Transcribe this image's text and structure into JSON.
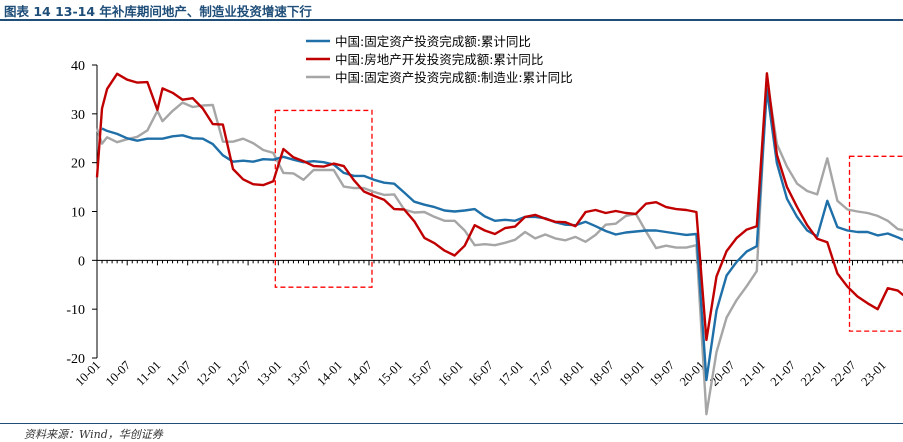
{
  "header": {
    "title": "图表 14   13-14 年补库期间地产、制造业投资增速下行"
  },
  "footer": {
    "source": "资料来源：Wind，华创证券"
  },
  "chart_data": {
    "type": "line",
    "title": "",
    "xlabel": "",
    "ylabel": "",
    "ylim": [
      -20,
      40
    ],
    "yticks": [
      -20,
      -10,
      0,
      10,
      20,
      30,
      40
    ],
    "x_tick_labels": [
      "10-01",
      "10-07",
      "11-01",
      "11-07",
      "12-01",
      "12-07",
      "13-01",
      "13-07",
      "14-01",
      "14-07",
      "15-01",
      "15-07",
      "16-01",
      "16-07",
      "17-01",
      "17-07",
      "18-01",
      "18-07",
      "19-01",
      "19-07",
      "20-01",
      "20-07",
      "21-01",
      "21-07",
      "22-01",
      "22-07",
      "23-01"
    ],
    "grid": false,
    "legend_position": "top-center",
    "highlight_boxes": [
      {
        "from": "13-01",
        "to": "14-07"
      },
      {
        "from": "22-07",
        "to": "23-07"
      }
    ],
    "series": [
      {
        "name": "中国:固定资产投资完成额:累计同比",
        "color": "#1f6fa8",
        "points": [
          [
            "10-02",
            27.0
          ],
          [
            "10-03",
            26.5
          ],
          [
            "10-05",
            25.9
          ],
          [
            "10-07",
            25.0
          ],
          [
            "10-09",
            24.5
          ],
          [
            "10-11",
            24.9
          ],
          [
            "11-02",
            24.9
          ],
          [
            "11-04",
            25.4
          ],
          [
            "11-06",
            25.6
          ],
          [
            "11-08",
            25.0
          ],
          [
            "11-10",
            24.9
          ],
          [
            "11-12",
            23.8
          ],
          [
            "12-02",
            21.5
          ],
          [
            "12-04",
            20.2
          ],
          [
            "12-06",
            20.4
          ],
          [
            "12-08",
            20.2
          ],
          [
            "12-10",
            20.7
          ],
          [
            "12-12",
            20.6
          ],
          [
            "13-02",
            21.2
          ],
          [
            "13-04",
            20.6
          ],
          [
            "13-06",
            20.1
          ],
          [
            "13-08",
            20.3
          ],
          [
            "13-10",
            20.1
          ],
          [
            "13-12",
            19.6
          ],
          [
            "14-02",
            17.9
          ],
          [
            "14-04",
            17.3
          ],
          [
            "14-06",
            17.3
          ],
          [
            "14-08",
            16.5
          ],
          [
            "14-10",
            15.9
          ],
          [
            "14-12",
            15.7
          ],
          [
            "15-02",
            13.9
          ],
          [
            "15-04",
            12.0
          ],
          [
            "15-06",
            11.4
          ],
          [
            "15-08",
            10.9
          ],
          [
            "15-10",
            10.2
          ],
          [
            "15-12",
            10.0
          ],
          [
            "16-02",
            10.2
          ],
          [
            "16-04",
            10.5
          ],
          [
            "16-06",
            9.0
          ],
          [
            "16-08",
            8.1
          ],
          [
            "16-10",
            8.3
          ],
          [
            "16-12",
            8.1
          ],
          [
            "17-02",
            8.9
          ],
          [
            "17-04",
            8.9
          ],
          [
            "17-06",
            8.6
          ],
          [
            "17-08",
            7.8
          ],
          [
            "17-10",
            7.3
          ],
          [
            "17-12",
            7.2
          ],
          [
            "18-02",
            7.9
          ],
          [
            "18-04",
            7.0
          ],
          [
            "18-06",
            6.0
          ],
          [
            "18-08",
            5.3
          ],
          [
            "18-10",
            5.7
          ],
          [
            "18-12",
            5.9
          ],
          [
            "19-02",
            6.1
          ],
          [
            "19-04",
            6.1
          ],
          [
            "19-06",
            5.8
          ],
          [
            "19-08",
            5.5
          ],
          [
            "19-10",
            5.2
          ],
          [
            "19-12",
            5.4
          ],
          [
            "20-02",
            -24.5
          ],
          [
            "20-04",
            -10.3
          ],
          [
            "20-06",
            -3.1
          ],
          [
            "20-08",
            -0.3
          ],
          [
            "20-10",
            1.8
          ],
          [
            "20-12",
            2.9
          ],
          [
            "21-02",
            35.0
          ],
          [
            "21-04",
            19.9
          ],
          [
            "21-06",
            12.6
          ],
          [
            "21-08",
            8.9
          ],
          [
            "21-10",
            6.1
          ],
          [
            "21-12",
            4.9
          ],
          [
            "22-02",
            12.2
          ],
          [
            "22-04",
            6.8
          ],
          [
            "22-06",
            6.1
          ],
          [
            "22-08",
            5.8
          ],
          [
            "22-10",
            5.8
          ],
          [
            "22-12",
            5.1
          ],
          [
            "23-02",
            5.5
          ],
          [
            "23-04",
            4.7
          ],
          [
            "23-06",
            3.8
          ],
          [
            "23-07",
            3.4
          ]
        ]
      },
      {
        "name": "中国:房地产开发投资完成额:累计同比",
        "color": "#c00000",
        "points": [
          [
            "10-01",
            17.0
          ],
          [
            "10-02",
            31.1
          ],
          [
            "10-03",
            35.1
          ],
          [
            "10-05",
            38.2
          ],
          [
            "10-07",
            37.0
          ],
          [
            "10-09",
            36.4
          ],
          [
            "10-11",
            36.5
          ],
          [
            "11-01",
            30.8
          ],
          [
            "11-02",
            35.2
          ],
          [
            "11-04",
            34.3
          ],
          [
            "11-06",
            32.9
          ],
          [
            "11-08",
            33.2
          ],
          [
            "11-10",
            31.1
          ],
          [
            "11-12",
            27.9
          ],
          [
            "12-02",
            27.8
          ],
          [
            "12-04",
            18.7
          ],
          [
            "12-06",
            16.6
          ],
          [
            "12-08",
            15.6
          ],
          [
            "12-10",
            15.4
          ],
          [
            "12-12",
            16.2
          ],
          [
            "13-02",
            22.8
          ],
          [
            "13-04",
            21.1
          ],
          [
            "13-06",
            20.3
          ],
          [
            "13-08",
            19.3
          ],
          [
            "13-10",
            19.2
          ],
          [
            "13-12",
            19.8
          ],
          [
            "14-02",
            19.3
          ],
          [
            "14-04",
            16.4
          ],
          [
            "14-06",
            14.1
          ],
          [
            "14-08",
            13.2
          ],
          [
            "14-10",
            12.4
          ],
          [
            "14-12",
            10.5
          ],
          [
            "15-02",
            10.4
          ],
          [
            "15-04",
            8.0
          ],
          [
            "15-06",
            4.6
          ],
          [
            "15-08",
            3.5
          ],
          [
            "15-10",
            2.0
          ],
          [
            "15-12",
            1.0
          ],
          [
            "16-02",
            3.0
          ],
          [
            "16-04",
            7.2
          ],
          [
            "16-06",
            6.1
          ],
          [
            "16-08",
            5.4
          ],
          [
            "16-10",
            6.6
          ],
          [
            "16-12",
            6.9
          ],
          [
            "17-02",
            8.9
          ],
          [
            "17-04",
            9.3
          ],
          [
            "17-06",
            8.5
          ],
          [
            "17-08",
            7.9
          ],
          [
            "17-10",
            7.8
          ],
          [
            "17-12",
            7.0
          ],
          [
            "18-02",
            9.9
          ],
          [
            "18-04",
            10.3
          ],
          [
            "18-06",
            9.7
          ],
          [
            "18-08",
            10.1
          ],
          [
            "18-10",
            9.7
          ],
          [
            "18-12",
            9.5
          ],
          [
            "19-02",
            11.6
          ],
          [
            "19-04",
            11.9
          ],
          [
            "19-06",
            10.9
          ],
          [
            "19-08",
            10.5
          ],
          [
            "19-10",
            10.3
          ],
          [
            "19-12",
            9.9
          ],
          [
            "20-02",
            -16.3
          ],
          [
            "20-04",
            -3.3
          ],
          [
            "20-06",
            1.9
          ],
          [
            "20-08",
            4.6
          ],
          [
            "20-10",
            6.3
          ],
          [
            "20-12",
            7.0
          ],
          [
            "21-02",
            38.3
          ],
          [
            "21-04",
            21.6
          ],
          [
            "21-06",
            15.0
          ],
          [
            "21-08",
            10.9
          ],
          [
            "21-10",
            7.2
          ],
          [
            "21-12",
            4.4
          ],
          [
            "22-02",
            3.7
          ],
          [
            "22-04",
            -2.7
          ],
          [
            "22-06",
            -5.4
          ],
          [
            "22-08",
            -7.4
          ],
          [
            "22-10",
            -8.8
          ],
          [
            "22-12",
            -10.0
          ],
          [
            "23-02",
            -5.7
          ],
          [
            "23-04",
            -6.2
          ],
          [
            "23-06",
            -7.9
          ],
          [
            "23-07",
            -8.5
          ]
        ]
      },
      {
        "name": "中国:固定资产投资完成额:制造业:累计同比",
        "color": "#a6a6a6",
        "points": [
          [
            "10-01",
            27.0
          ],
          [
            "10-02",
            23.9
          ],
          [
            "10-03",
            25.2
          ],
          [
            "10-05",
            24.2
          ],
          [
            "10-07",
            24.8
          ],
          [
            "10-09",
            25.3
          ],
          [
            "10-11",
            26.6
          ],
          [
            "11-01",
            30.6
          ],
          [
            "11-02",
            28.5
          ],
          [
            "11-04",
            30.6
          ],
          [
            "11-06",
            32.3
          ],
          [
            "11-08",
            31.4
          ],
          [
            "11-10",
            31.7
          ],
          [
            "11-12",
            31.8
          ],
          [
            "12-02",
            24.3
          ],
          [
            "12-04",
            24.3
          ],
          [
            "12-06",
            24.9
          ],
          [
            "12-08",
            24.0
          ],
          [
            "12-10",
            22.6
          ],
          [
            "12-12",
            22.0
          ],
          [
            "13-02",
            17.9
          ],
          [
            "13-04",
            17.8
          ],
          [
            "13-06",
            16.5
          ],
          [
            "13-08",
            18.5
          ],
          [
            "13-10",
            18.5
          ],
          [
            "13-12",
            18.5
          ],
          [
            "14-02",
            15.1
          ],
          [
            "14-04",
            14.8
          ],
          [
            "14-06",
            14.8
          ],
          [
            "14-08",
            14.0
          ],
          [
            "14-10",
            13.4
          ],
          [
            "14-12",
            13.5
          ],
          [
            "15-02",
            10.4
          ],
          [
            "15-04",
            9.8
          ],
          [
            "15-06",
            9.9
          ],
          [
            "15-08",
            8.9
          ],
          [
            "15-10",
            8.1
          ],
          [
            "15-12",
            8.1
          ],
          [
            "16-02",
            6.1
          ],
          [
            "16-04",
            3.1
          ],
          [
            "16-06",
            3.3
          ],
          [
            "16-08",
            3.1
          ],
          [
            "16-10",
            3.6
          ],
          [
            "16-12",
            4.2
          ],
          [
            "17-02",
            5.8
          ],
          [
            "17-04",
            4.5
          ],
          [
            "17-06",
            5.3
          ],
          [
            "17-08",
            4.5
          ],
          [
            "17-10",
            4.1
          ],
          [
            "17-12",
            4.8
          ],
          [
            "18-02",
            3.8
          ],
          [
            "18-04",
            5.2
          ],
          [
            "18-06",
            7.3
          ],
          [
            "18-08",
            7.5
          ],
          [
            "18-10",
            9.1
          ],
          [
            "18-12",
            9.5
          ],
          [
            "19-02",
            5.9
          ],
          [
            "19-04",
            2.5
          ],
          [
            "19-06",
            3.0
          ],
          [
            "19-08",
            2.6
          ],
          [
            "19-10",
            2.6
          ],
          [
            "19-12",
            3.1
          ],
          [
            "20-02",
            -31.5
          ],
          [
            "20-04",
            -18.8
          ],
          [
            "20-06",
            -11.7
          ],
          [
            "20-08",
            -8.1
          ],
          [
            "20-10",
            -5.3
          ],
          [
            "20-12",
            -2.2
          ],
          [
            "21-02",
            37.3
          ],
          [
            "21-04",
            23.8
          ],
          [
            "21-06",
            19.2
          ],
          [
            "21-08",
            15.7
          ],
          [
            "21-10",
            14.2
          ],
          [
            "21-12",
            13.5
          ],
          [
            "22-02",
            20.9
          ],
          [
            "22-04",
            12.2
          ],
          [
            "22-06",
            10.4
          ],
          [
            "22-08",
            10.0
          ],
          [
            "22-10",
            9.7
          ],
          [
            "22-12",
            9.1
          ],
          [
            "23-02",
            8.1
          ],
          [
            "23-04",
            6.4
          ],
          [
            "23-06",
            6.0
          ],
          [
            "23-07",
            5.7
          ]
        ]
      }
    ]
  }
}
